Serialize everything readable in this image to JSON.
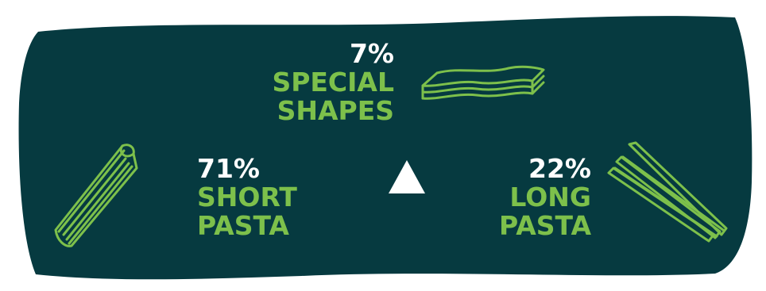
{
  "colors": {
    "background_shape": "#063a40",
    "accent_green": "#7dc04b",
    "text_white": "#ffffff"
  },
  "segments": [
    {
      "percent": "7%",
      "label_line1": "SPECIAL",
      "label_line2": "SHAPES",
      "icon": "lasagna-sheets-icon"
    },
    {
      "percent": "71%",
      "label_line1": "SHORT",
      "label_line2": "PASTA",
      "icon": "penne-icon"
    },
    {
      "percent": "22%",
      "label_line1": "LONG",
      "label_line2": "PASTA",
      "icon": "long-pasta-icon"
    }
  ],
  "center_icon": "triangle-icon"
}
